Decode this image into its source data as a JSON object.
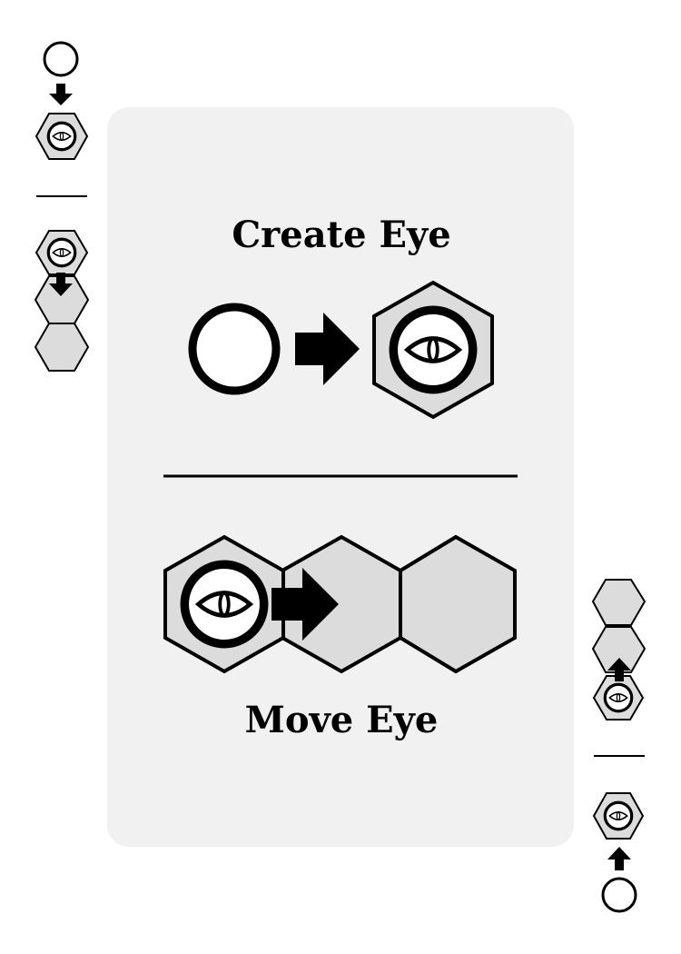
{
  "card": {
    "create_title": "Create Eye",
    "move_title": "Move Eye"
  },
  "icons": [
    "circle-token-icon",
    "arrow-icon",
    "eye-hex-icon",
    "hex-tile-icon"
  ],
  "colors": {
    "card_bg": "#f1f1f1",
    "hex_fill": "#dcdcdc",
    "ink": "#000000",
    "white": "#ffffff"
  }
}
